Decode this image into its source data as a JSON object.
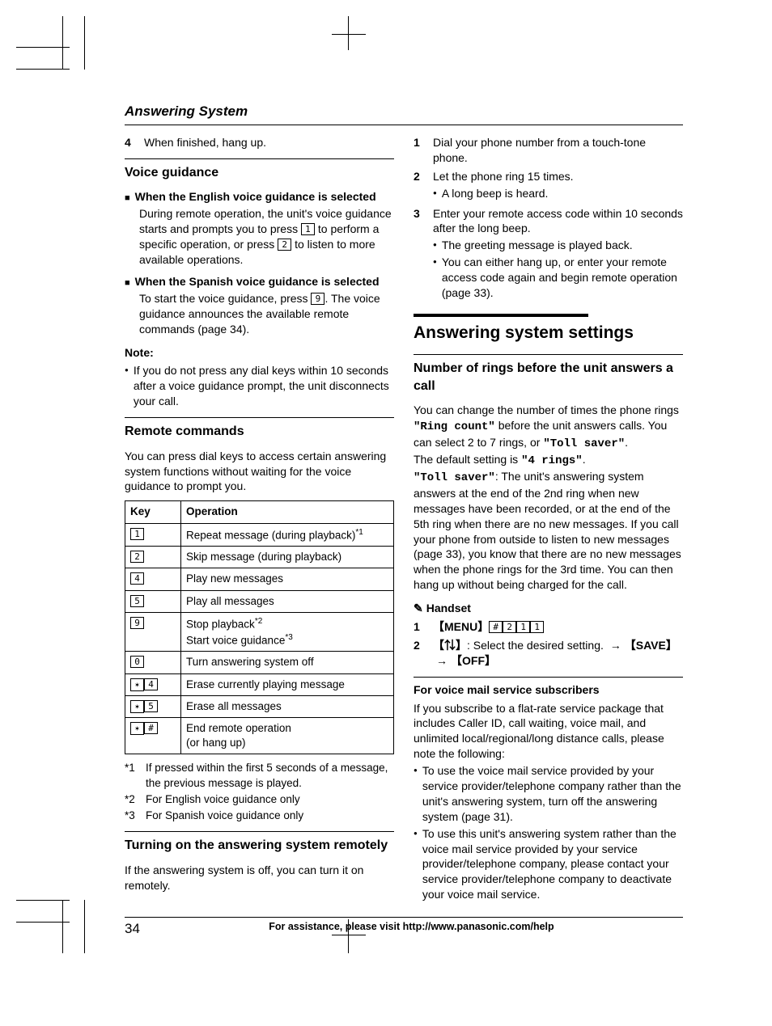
{
  "header": {
    "title": "Answering System"
  },
  "left": {
    "step4": "When finished, hang up.",
    "vg_title": "Voice guidance",
    "eng_head": "When the English voice guidance is selected",
    "eng_body": "During remote operation, the unit's voice guidance starts and prompts you to press 1 to perform a specific operation, or press 2 to listen to more available operations.",
    "spa_head": "When the Spanish voice guidance is selected",
    "spa_body": "To start the voice guidance, press 9. The voice guidance announces the available remote commands (page 34).",
    "note_label": "Note:",
    "note_item": "If you do not press any dial keys within 10 seconds after a voice guidance prompt, the unit disconnects your call.",
    "rc_title": "Remote commands",
    "rc_intro": "You can press dial keys to access certain answering system functions without waiting for the voice guidance to prompt you.",
    "table": {
      "h_key": "Key",
      "h_op": "Operation",
      "rows": [
        {
          "keys": [
            "1"
          ],
          "op": "Repeat message (during playback)",
          "sup": "*1"
        },
        {
          "keys": [
            "2"
          ],
          "op": "Skip message (during playback)",
          "sup": ""
        },
        {
          "keys": [
            "4"
          ],
          "op": "Play new messages",
          "sup": ""
        },
        {
          "keys": [
            "5"
          ],
          "op": "Play all messages",
          "sup": ""
        },
        {
          "keys": [
            "9"
          ],
          "op": "Stop playback",
          "sup": "*2",
          "line2": "Start voice guidance",
          "sup2": "*3"
        },
        {
          "keys": [
            "0"
          ],
          "op": "Turn answering system off",
          "sup": ""
        },
        {
          "keys": [
            "*",
            "4"
          ],
          "op": "Erase currently playing message",
          "sup": ""
        },
        {
          "keys": [
            "*",
            "5"
          ],
          "op": "Erase all messages",
          "sup": ""
        },
        {
          "keys": [
            "*",
            "#"
          ],
          "op": "End remote operation",
          "line2plain": "(or hang up)",
          "sup": ""
        }
      ]
    },
    "fn1": "If pressed within the first 5 seconds of a message, the previous message is played.",
    "fn2": "For English voice guidance only",
    "fn3": "For Spanish voice guidance only",
    "turn_on_title": "Turning on the answering system remotely",
    "turn_on_body": "If the answering system is off, you can turn it on remotely."
  },
  "right": {
    "step1": "Dial your phone number from a touch-tone phone.",
    "step2": "Let the phone ring 15 times.",
    "step2_sub": "A long beep is heard.",
    "step3": "Enter your remote access code within 10 seconds after the long beep.",
    "step3_sub1": "The greeting message is played back.",
    "step3_sub2": "You can either hang up, or enter your remote access code again and begin remote operation (page 33).",
    "big_title": "Answering system settings",
    "num_rings_title": "Number of rings before the unit answers a call",
    "p1_a": "You can change the number of times the phone rings ",
    "p1_ring_count": "\"Ring count\"",
    "p1_b": " before the unit answers calls. You can select 2 to 7 rings, or ",
    "p1_toll_saver": "\"Toll saver\"",
    "p1_c": ".",
    "p2_a": "The default setting is ",
    "p2_4rings": "\"4 rings\"",
    "p2_b": ".",
    "p3_label": "\"Toll saver\"",
    "p3_body": ": The unit's answering system answers at the end of the 2nd ring when new messages have been recorded, or at the end of the 5th ring when there are no new messages. If you call your phone from outside to listen to new messages (page 33), you know that there are no new messages when the phone rings for the 3rd time. You can then hang up without being charged for the call.",
    "handset_label": "Handset",
    "menu": "MENU",
    "menu_keys": [
      "#",
      "2",
      "1",
      "1"
    ],
    "step2r_a": ": Select the desired setting. ",
    "save": "SAVE",
    "off": "OFF",
    "vm_title": "For voice mail service subscribers",
    "vm_intro": "If you subscribe to a flat-rate service package that includes Caller ID, call waiting, voice mail, and unlimited local/regional/long distance calls, please note the following:",
    "vm_b1": "To use the voice mail service provided by your service provider/telephone company rather than the unit's answering system, turn off the answering system (page 31).",
    "vm_b2": "To use this unit's answering system rather than the voice mail service provided by your service provider/telephone company, please contact your service provider/telephone company to deactivate your voice mail service."
  },
  "footer": {
    "page": "34",
    "assist": "For assistance, please visit http://www.panasonic.com/help"
  }
}
